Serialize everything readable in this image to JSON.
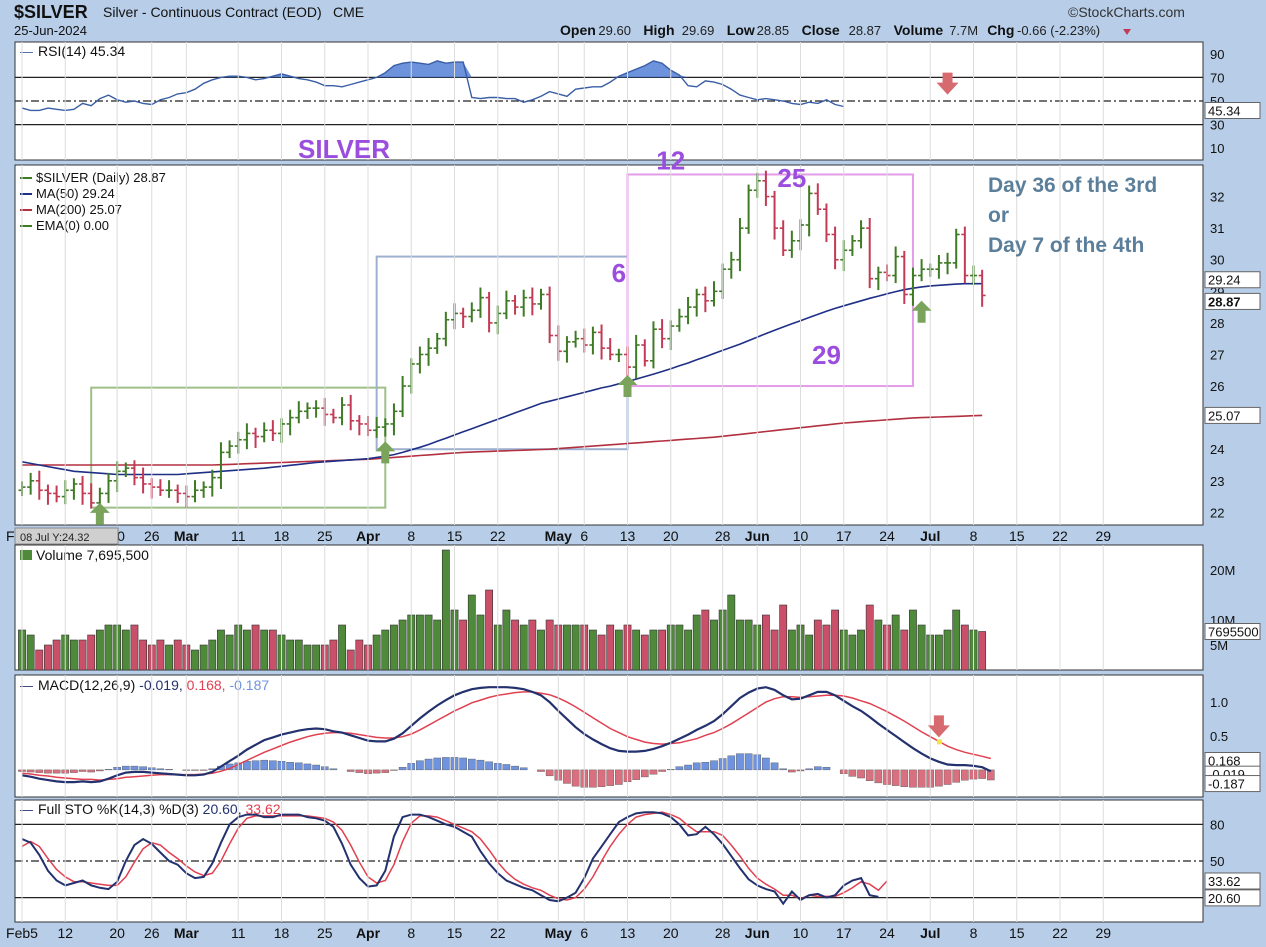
{
  "header": {
    "symbol": "$SILVER",
    "description": "Silver - Continuous Contract (EOD)",
    "exchange": "CME",
    "date": "25-Jun-2024",
    "brand": "©StockCharts.com",
    "ohlc": [
      {
        "label": "Open",
        "value": "29.60"
      },
      {
        "label": "High",
        "value": "29.69"
      },
      {
        "label": "Low",
        "value": "28.85"
      },
      {
        "label": "Close",
        "value": "28.87"
      },
      {
        "label": "Volume",
        "value": "7.7M"
      },
      {
        "label": "Chg",
        "value": "-0.66 (-2.23%)"
      }
    ],
    "chg_arrow": "down-arrow-icon"
  },
  "colors": {
    "up": "#3f7a25",
    "down": "#c23a55",
    "ma50": "#1e2f86",
    "ma200": "#b23040",
    "rsi": "#3a5ea5",
    "macd_signal": "#e04050",
    "histogram_pos": "#6f93de",
    "histogram_neg": "#d9707f",
    "annotation_purple": "#9b4ede",
    "annotation_gray": "#5b7f9a",
    "arrow_green": "#7aa35c",
    "arrow_red": "#d66a6f"
  },
  "annotations": {
    "title": "SILVER",
    "day_note_line1": "Day 36 of the 3rd",
    "day_note_line2": "or",
    "day_note_line3": "Day 7 of the 4th",
    "wave_labels": [
      {
        "text": "6",
        "date": "2024-05-10"
      },
      {
        "text": "12",
        "date": "2024-05-20"
      },
      {
        "text": "25",
        "date": "2024-06-07"
      },
      {
        "text": "29",
        "date": "2024-06-13"
      }
    ]
  },
  "x_axis": {
    "date_labels": [
      "Feb5",
      "12",
      "20",
      "26",
      "Mar",
      "11",
      "18",
      "25",
      "Apr",
      "8",
      "15",
      "22",
      "May",
      "6",
      "13",
      "20",
      "28",
      "Jun",
      "10",
      "17",
      "24",
      "Jul",
      "8",
      "15",
      "22",
      "29"
    ],
    "hover_label": "08 Jul Y:24.32"
  },
  "chart_data": [
    {
      "type": "line",
      "panel": "rsi",
      "title": "RSI(14) 45.34",
      "ylim": [
        0,
        100
      ],
      "yticks": [
        "90",
        "70",
        "50",
        "30",
        "10"
      ],
      "levels": [
        70,
        50,
        30
      ],
      "current": "45.34",
      "series": [
        {
          "name": "RSI(14)",
          "values": [
            44,
            42,
            42,
            44,
            43,
            42,
            43,
            48,
            46,
            52,
            55,
            51,
            49,
            50,
            48,
            47,
            51,
            53,
            56,
            57,
            60,
            65,
            68,
            70,
            71,
            71,
            70,
            68,
            69,
            71,
            73,
            71,
            69,
            68,
            66,
            63,
            63,
            62,
            64,
            66,
            68,
            70,
            74,
            80,
            82,
            83,
            82,
            81,
            84,
            82,
            83,
            83,
            53,
            52,
            53,
            53,
            52,
            52,
            49,
            51,
            54,
            58,
            56,
            54,
            60,
            61,
            62,
            62,
            66,
            71,
            74,
            77,
            80,
            84,
            82,
            76,
            72,
            63,
            62,
            67,
            66,
            64,
            60,
            55,
            53,
            51,
            52,
            51,
            50,
            48,
            47,
            49,
            48,
            51,
            47,
            45.34
          ]
        }
      ]
    },
    {
      "type": "candlestick",
      "panel": "price",
      "title": "$SILVER (Daily) 28.87",
      "ylim": [
        21.6,
        33.0
      ],
      "yticks": [
        "32",
        "31",
        "30",
        "29",
        "28",
        "27",
        "26",
        "25",
        "24",
        "23",
        "22"
      ],
      "price_tags": [
        "29.24",
        "28.87",
        "25.07"
      ],
      "legend": [
        {
          "name": "$SILVER (Daily) 28.87"
        },
        {
          "name": "MA(50) 29.24"
        },
        {
          "name": "MA(200) 25.07"
        },
        {
          "name": "EMA(0) 0.00"
        }
      ],
      "start_date": "2024-02-05",
      "closes": [
        22.8,
        23.0,
        22.7,
        22.6,
        22.5,
        22.7,
        22.9,
        22.6,
        22.3,
        22.6,
        23.0,
        23.3,
        23.4,
        23.1,
        22.9,
        22.8,
        22.7,
        22.7,
        22.6,
        22.5,
        22.7,
        22.8,
        23.1,
        23.9,
        24.1,
        24.3,
        24.5,
        24.4,
        24.6,
        24.5,
        24.8,
        25.0,
        25.2,
        25.3,
        25.3,
        25.1,
        25.0,
        25.4,
        24.9,
        24.8,
        24.6,
        24.7,
        24.8,
        25.2,
        26.0,
        26.7,
        27.0,
        27.2,
        27.5,
        28.1,
        28.3,
        28.2,
        28.4,
        28.8,
        28.0,
        28.3,
        28.7,
        28.5,
        28.8,
        28.6,
        28.9,
        27.6,
        27.1,
        27.4,
        27.5,
        27.3,
        27.7,
        27.2,
        27.0,
        27.0,
        26.6,
        27.3,
        26.8,
        27.8,
        27.5,
        27.9,
        28.2,
        28.5,
        28.9,
        28.7,
        29.0,
        29.7,
        30.0,
        31.0,
        32.2,
        32.5,
        32.0,
        31.0,
        30.3,
        30.6,
        31.1,
        32.1,
        31.6,
        30.8,
        30.0,
        30.3,
        30.6,
        31.0,
        29.4,
        29.6,
        29.5,
        30.1,
        28.9,
        29.5,
        29.7,
        29.7,
        29.9,
        29.9,
        30.8,
        29.5,
        29.5,
        28.87
      ],
      "ma50": [
        23.6,
        23.55,
        23.5,
        23.45,
        23.4,
        23.35,
        23.3,
        23.28,
        23.26,
        23.24,
        23.22,
        23.2,
        23.2,
        23.2,
        23.2,
        23.2,
        23.2,
        23.2,
        23.2,
        23.22,
        23.24,
        23.26,
        23.28,
        23.3,
        23.32,
        23.34,
        23.36,
        23.38,
        23.4,
        23.43,
        23.46,
        23.49,
        23.52,
        23.55,
        23.58,
        23.6,
        23.62,
        23.64,
        23.66,
        23.68,
        23.7,
        23.74,
        23.78,
        23.83,
        23.9,
        23.98,
        24.06,
        24.15,
        24.25,
        24.35,
        24.45,
        24.55,
        24.65,
        24.75,
        24.85,
        24.95,
        25.05,
        25.15,
        25.25,
        25.35,
        25.45,
        25.52,
        25.59,
        25.66,
        25.73,
        25.8,
        25.87,
        25.94,
        26.0,
        26.07,
        26.14,
        26.22,
        26.3,
        26.38,
        26.46,
        26.55,
        26.64,
        26.73,
        26.83,
        26.93,
        27.03,
        27.13,
        27.23,
        27.33,
        27.44,
        27.55,
        27.66,
        27.77,
        27.87,
        27.97,
        28.07,
        28.17,
        28.27,
        28.37,
        28.46,
        28.54,
        28.62,
        28.7,
        28.78,
        28.85,
        28.92,
        28.99,
        29.05,
        29.1,
        29.14,
        29.17,
        29.19,
        29.21,
        29.23,
        29.24,
        29.24,
        29.24
      ],
      "ma200": [
        23.5,
        23.5,
        23.5,
        23.5,
        23.5,
        23.5,
        23.5,
        23.5,
        23.5,
        23.5,
        23.5,
        23.5,
        23.5,
        23.5,
        23.5,
        23.5,
        23.5,
        23.5,
        23.5,
        23.5,
        23.5,
        23.5,
        23.5,
        23.51,
        23.52,
        23.53,
        23.54,
        23.55,
        23.56,
        23.57,
        23.58,
        23.59,
        23.6,
        23.61,
        23.62,
        23.63,
        23.64,
        23.65,
        23.66,
        23.67,
        23.68,
        23.7,
        23.72,
        23.74,
        23.76,
        23.78,
        23.8,
        23.82,
        23.84,
        23.86,
        23.88,
        23.9,
        23.91,
        23.92,
        23.93,
        23.94,
        23.95,
        23.96,
        23.97,
        23.98,
        23.99,
        24.0,
        24.02,
        24.04,
        24.06,
        24.08,
        24.1,
        24.12,
        24.14,
        24.16,
        24.18,
        24.2,
        24.22,
        24.24,
        24.26,
        24.28,
        24.3,
        24.32,
        24.34,
        24.36,
        24.38,
        24.41,
        24.44,
        24.47,
        24.5,
        24.53,
        24.56,
        24.59,
        24.62,
        24.65,
        24.68,
        24.71,
        24.74,
        24.77,
        24.8,
        24.83,
        24.85,
        24.87,
        24.89,
        24.91,
        24.93,
        24.95,
        24.97,
        24.99,
        25.0,
        25.01,
        25.02,
        25.03,
        25.04,
        25.05,
        25.06,
        25.07
      ]
    },
    {
      "type": "bar",
      "panel": "volume",
      "title": "Volume 7,695,500",
      "ylim": [
        0,
        25
      ],
      "yticks": [
        "20M",
        "10M",
        "5M"
      ],
      "current": "7695500",
      "unit": "M",
      "values": [
        8,
        7,
        4,
        5,
        6,
        7,
        6,
        6,
        7,
        8,
        9,
        9,
        8,
        9,
        6,
        5,
        6,
        5,
        6,
        5,
        4,
        5,
        6,
        8,
        7,
        9,
        8,
        9,
        8,
        8,
        7,
        6,
        6,
        5,
        5,
        5,
        6,
        9,
        4,
        6,
        5,
        7,
        8,
        9,
        10,
        11,
        11,
        11,
        10,
        24,
        12,
        10,
        15,
        11,
        16,
        9,
        12,
        10,
        9,
        10,
        8,
        10,
        9,
        9,
        9,
        9,
        8,
        7,
        9,
        8,
        9,
        8,
        7,
        8,
        8,
        9,
        9,
        8,
        11,
        12,
        10,
        12,
        15,
        10,
        10,
        9,
        11,
        8,
        13,
        8,
        9,
        7,
        10,
        9,
        12,
        8,
        7,
        8,
        13,
        10,
        9,
        11,
        8,
        12,
        9,
        7,
        7,
        8,
        12,
        9,
        8,
        7.7
      ]
    },
    {
      "type": "line",
      "panel": "macd",
      "title": "MACD(12,26,9) -0.019, 0.168, -0.187",
      "legend_values": [
        "-0.019",
        "0.168",
        "-0.187"
      ],
      "ylim": [
        -0.4,
        1.4
      ],
      "yticks": [
        "1.0",
        "0.5"
      ],
      "price_tags": [
        "0.168",
        "-0.019",
        "-0.187"
      ],
      "series": [
        {
          "name": "MACD",
          "values": [
            -0.08,
            -0.1,
            -0.13,
            -0.15,
            -0.17,
            -0.18,
            -0.18,
            -0.17,
            -0.18,
            -0.17,
            -0.13,
            -0.08,
            -0.04,
            -0.03,
            -0.03,
            -0.04,
            -0.05,
            -0.06,
            -0.07,
            -0.08,
            -0.08,
            -0.07,
            -0.03,
            0.05,
            0.13,
            0.21,
            0.3,
            0.37,
            0.44,
            0.48,
            0.52,
            0.55,
            0.58,
            0.6,
            0.61,
            0.6,
            0.57,
            0.55,
            0.51,
            0.47,
            0.43,
            0.42,
            0.42,
            0.46,
            0.54,
            0.65,
            0.76,
            0.86,
            0.95,
            1.03,
            1.1,
            1.15,
            1.19,
            1.21,
            1.22,
            1.22,
            1.22,
            1.21,
            1.19,
            1.15,
            1.1,
            1.0,
            0.87,
            0.75,
            0.63,
            0.53,
            0.45,
            0.38,
            0.32,
            0.28,
            0.27,
            0.27,
            0.28,
            0.31,
            0.35,
            0.4,
            0.46,
            0.52,
            0.59,
            0.65,
            0.72,
            0.82,
            0.94,
            1.06,
            1.14,
            1.2,
            1.22,
            1.18,
            1.1,
            1.04,
            1.05,
            1.1,
            1.15,
            1.15,
            1.1,
            1.02,
            0.94,
            0.87,
            0.78,
            0.68,
            0.59,
            0.5,
            0.41,
            0.32,
            0.24,
            0.17,
            0.12,
            0.08,
            0.07,
            0.07,
            0.06,
            0.04,
            -0.019
          ]
        },
        {
          "name": "Signal",
          "values": [
            -0.05,
            -0.06,
            -0.08,
            -0.09,
            -0.11,
            -0.12,
            -0.13,
            -0.14,
            -0.14,
            -0.15,
            -0.14,
            -0.13,
            -0.11,
            -0.1,
            -0.09,
            -0.08,
            -0.07,
            -0.07,
            -0.07,
            -0.07,
            -0.07,
            -0.06,
            -0.05,
            -0.02,
            0.02,
            0.08,
            0.14,
            0.2,
            0.26,
            0.31,
            0.36,
            0.41,
            0.45,
            0.49,
            0.52,
            0.54,
            0.55,
            0.55,
            0.54,
            0.52,
            0.5,
            0.48,
            0.47,
            0.47,
            0.49,
            0.53,
            0.59,
            0.66,
            0.73,
            0.8,
            0.87,
            0.93,
            0.99,
            1.03,
            1.07,
            1.1,
            1.12,
            1.14,
            1.15,
            1.15,
            1.13,
            1.11,
            1.06,
            1.0,
            0.93,
            0.85,
            0.77,
            0.69,
            0.61,
            0.55,
            0.49,
            0.45,
            0.41,
            0.39,
            0.38,
            0.39,
            0.4,
            0.43,
            0.46,
            0.51,
            0.55,
            0.61,
            0.68,
            0.76,
            0.84,
            0.92,
            1.0,
            1.05,
            1.08,
            1.08,
            1.07,
            1.08,
            1.09,
            1.1,
            1.1,
            1.09,
            1.06,
            1.02,
            0.98,
            0.92,
            0.86,
            0.79,
            0.72,
            0.64,
            0.56,
            0.49,
            0.42,
            0.35,
            0.3,
            0.26,
            0.23,
            0.2,
            0.168
          ]
        }
      ]
    },
    {
      "type": "line",
      "panel": "stochastic",
      "title": "Full STO %K(14,3) %D(3) 20.60, 33.62",
      "legend_values": [
        "20.60",
        "33.62"
      ],
      "ylim": [
        0,
        100
      ],
      "yticks": [
        "80",
        "50"
      ],
      "levels": [
        80,
        50,
        20
      ],
      "price_tags": [
        "33.62",
        "20.60"
      ],
      "series": [
        {
          "name": "%K",
          "values": [
            68,
            65,
            55,
            42,
            34,
            30,
            32,
            34,
            30,
            28,
            27,
            33,
            50,
            63,
            68,
            64,
            57,
            50,
            47,
            40,
            36,
            37,
            48,
            65,
            80,
            86,
            88,
            88,
            86,
            86,
            88,
            88,
            88,
            86,
            85,
            83,
            78,
            64,
            47,
            36,
            29,
            30,
            42,
            70,
            86,
            88,
            88,
            86,
            83,
            80,
            78,
            74,
            70,
            58,
            48,
            40,
            34,
            31,
            28,
            26,
            22,
            18,
            17,
            20,
            24,
            36,
            52,
            62,
            72,
            82,
            86,
            89,
            90,
            90,
            89,
            86,
            80,
            71,
            72,
            78,
            72,
            64,
            54,
            44,
            35,
            30,
            27,
            25,
            15,
            25,
            18,
            22,
            23,
            20,
            22,
            30,
            34,
            36,
            22,
            20.6
          ]
        },
        {
          "name": "%D",
          "values": [
            62,
            66,
            62,
            52,
            43,
            37,
            33,
            33,
            32,
            31,
            30,
            30,
            37,
            49,
            60,
            65,
            63,
            57,
            52,
            46,
            41,
            38,
            40,
            50,
            64,
            77,
            85,
            87,
            87,
            87,
            87,
            87,
            87,
            87,
            86,
            85,
            82,
            75,
            63,
            49,
            37,
            32,
            34,
            47,
            66,
            81,
            87,
            87,
            86,
            83,
            80,
            77,
            74,
            68,
            59,
            49,
            41,
            35,
            31,
            28,
            26,
            22,
            19,
            18,
            20,
            27,
            37,
            50,
            62,
            72,
            80,
            86,
            88,
            89,
            90,
            88,
            85,
            79,
            74,
            74,
            74,
            71,
            63,
            54,
            44,
            36,
            31,
            27,
            22,
            22,
            19,
            22,
            21,
            21,
            21,
            24,
            28,
            33,
            31,
            26,
            33.62
          ]
        }
      ]
    }
  ]
}
